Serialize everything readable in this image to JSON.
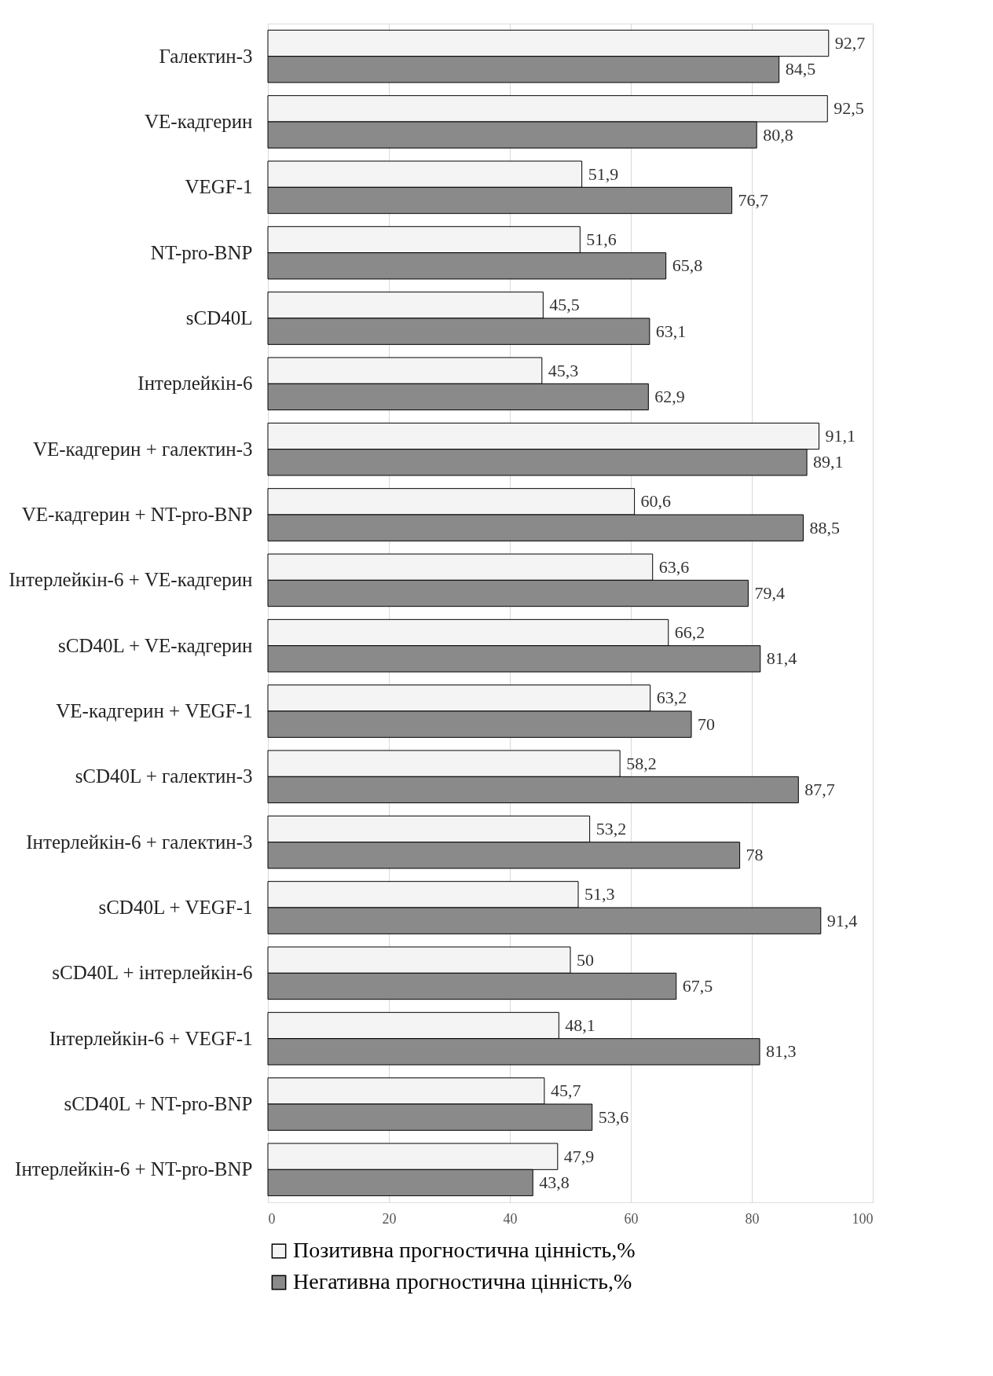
{
  "chart_data": {
    "type": "bar",
    "orientation": "horizontal",
    "categories": [
      "Галектин-3",
      "VE-кадгерин",
      "VEGF-1",
      "NT-pro-BNP",
      "sCD40L",
      "Інтерлейкін-6",
      "VE-кадгерин + галектин-3",
      "VE-кадгерин + NT-pro-BNP",
      "Інтерлейкін-6 + VE-кадгерин",
      "sCD40L + VE-кадгерин",
      "VE-кадгерин + VEGF-1",
      "sCD40L + галектин-3",
      "Інтерлейкін-6 + галектин-3",
      "sCD40L + VEGF-1",
      "sCD40L + інтерлейкін-6",
      "Інтерлейкін-6 + VEGF-1",
      "sCD40L + NT-pro-BNP",
      "Інтерлейкін-6 + NT-pro-BNP"
    ],
    "series": [
      {
        "name": "Позитивна прогностична цінність,%",
        "color": "#f4f4f4",
        "values": [
          92.7,
          92.5,
          51.9,
          51.6,
          45.5,
          45.3,
          91.1,
          60.6,
          63.6,
          66.2,
          63.2,
          58.2,
          53.2,
          51.3,
          50,
          48.1,
          45.7,
          47.9
        ],
        "value_labels": [
          "92,7",
          "92,5",
          "51,9",
          "51,6",
          "45,5",
          "45,3",
          "91,1",
          "60,6",
          "63,6",
          "66,2",
          "63,2",
          "58,2",
          "53,2",
          "51,3",
          "50",
          "48,1",
          "45,7",
          "47,9"
        ]
      },
      {
        "name": "Негативна прогностична цінність,%",
        "color": "#8a8a8a",
        "values": [
          84.5,
          80.8,
          76.7,
          65.8,
          63.1,
          62.9,
          89.1,
          88.5,
          79.4,
          81.4,
          70,
          87.7,
          78,
          91.4,
          67.5,
          81.3,
          53.6,
          43.8
        ],
        "value_labels": [
          "84,5",
          "80,8",
          "76,7",
          "65,8",
          "63,1",
          "62,9",
          "89,1",
          "88,5",
          "79,4",
          "81,4",
          "70",
          "87,7",
          "78",
          "91,4",
          "67,5",
          "81,3",
          "53,6",
          "43,8"
        ]
      }
    ],
    "xlim": [
      0,
      100
    ],
    "xticks": [
      0,
      20,
      40,
      60,
      80,
      100
    ],
    "grid": "x",
    "legend": "bottom"
  }
}
